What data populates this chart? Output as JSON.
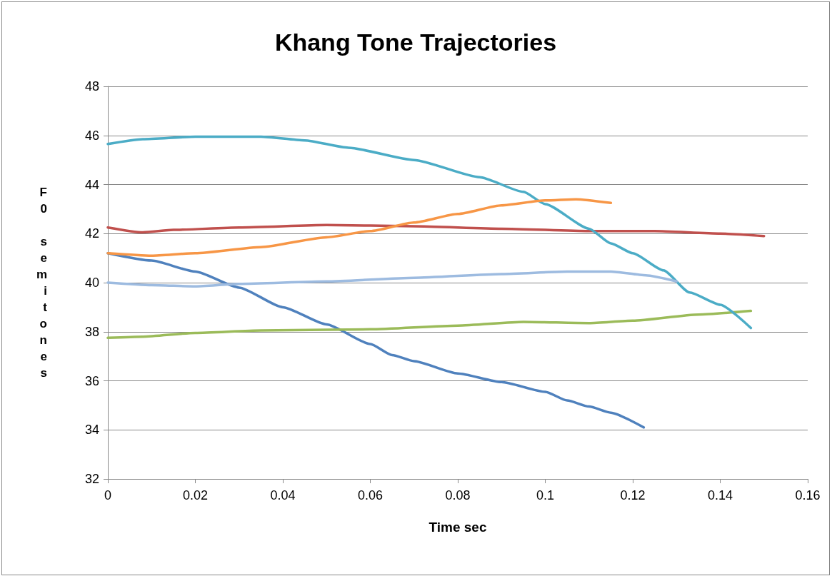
{
  "chart_data": {
    "type": "line",
    "title": "Khang Tone Trajectories",
    "xlabel": "Time sec",
    "ylabel": "F0 semitones",
    "xlim": [
      0,
      0.16
    ],
    "xticks": [
      0,
      0.02,
      0.04,
      0.06,
      0.08,
      0.1,
      0.12,
      0.14,
      0.16
    ],
    "ylim": [
      32,
      48
    ],
    "yticks": [
      32,
      34,
      36,
      38,
      40,
      42,
      44,
      46,
      48
    ],
    "grid": "y",
    "marker": "none",
    "line_style": "solid",
    "series": [
      {
        "color": "#4f81bd",
        "x": [
          0,
          0.01,
          0.02,
          0.03,
          0.04,
          0.05,
          0.06,
          0.065,
          0.07,
          0.08,
          0.09,
          0.1,
          0.105,
          0.11,
          0.115,
          0.1225
        ],
        "values": [
          41.2,
          40.9,
          40.45,
          39.8,
          39.0,
          38.3,
          37.5,
          37.05,
          36.8,
          36.3,
          35.95,
          35.55,
          35.2,
          34.95,
          34.7,
          34.1
        ]
      },
      {
        "color": "#c0504d",
        "x": [
          0,
          0.008,
          0.015,
          0.03,
          0.05,
          0.07,
          0.09,
          0.11,
          0.125,
          0.14,
          0.15
        ],
        "values": [
          42.25,
          42.05,
          42.15,
          42.25,
          42.35,
          42.3,
          42.2,
          42.1,
          42.1,
          42.0,
          41.9
        ]
      },
      {
        "color": "#9bbb59",
        "x": [
          0,
          0.008,
          0.02,
          0.035,
          0.05,
          0.06,
          0.08,
          0.095,
          0.11,
          0.12,
          0.135,
          0.147
        ],
        "values": [
          37.75,
          37.8,
          37.95,
          38.05,
          38.08,
          38.1,
          38.25,
          38.4,
          38.35,
          38.45,
          38.7,
          38.85
        ]
      },
      {
        "color": "#4bacc6",
        "x": [
          0,
          0.008,
          0.02,
          0.035,
          0.045,
          0.055,
          0.07,
          0.085,
          0.095,
          0.1,
          0.11,
          0.115,
          0.12,
          0.127,
          0.133,
          0.14,
          0.147
        ],
        "values": [
          45.65,
          45.85,
          45.95,
          45.95,
          45.8,
          45.5,
          45.0,
          44.3,
          43.7,
          43.2,
          42.2,
          41.6,
          41.2,
          40.5,
          39.6,
          39.1,
          38.15
        ]
      },
      {
        "color": "#f79646",
        "x": [
          0,
          0.01,
          0.02,
          0.035,
          0.05,
          0.06,
          0.07,
          0.08,
          0.09,
          0.1,
          0.107,
          0.115
        ],
        "values": [
          41.2,
          41.1,
          41.2,
          41.45,
          41.85,
          42.1,
          42.45,
          42.8,
          43.15,
          43.35,
          43.4,
          43.25
        ]
      },
      {
        "color": "#9dbbe0",
        "x": [
          0,
          0.01,
          0.02,
          0.03,
          0.05,
          0.07,
          0.09,
          0.105,
          0.115,
          0.123,
          0.13
        ],
        "values": [
          40.0,
          39.9,
          39.85,
          39.95,
          40.05,
          40.2,
          40.35,
          40.45,
          40.45,
          40.3,
          40.05
        ]
      }
    ]
  }
}
